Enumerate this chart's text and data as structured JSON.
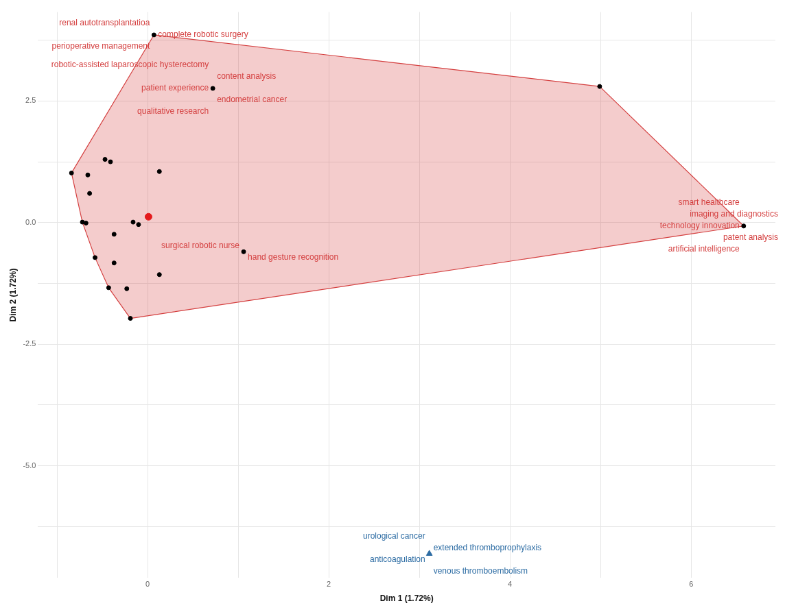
{
  "chart_data": {
    "type": "scatter",
    "xlabel": "Dim 1 (1.72%)",
    "ylabel": "Dim 2 (1.72%)",
    "xlim": [
      -1.21,
      6.93
    ],
    "ylim": [
      -7.31,
      4.33
    ],
    "xticks": [
      {
        "value": -1,
        "label": null
      },
      0,
      {
        "value": 1,
        "label": null
      },
      2,
      {
        "value": 3,
        "label": null
      },
      4,
      {
        "value": 5,
        "label": null
      },
      6
    ],
    "yticks": [
      {
        "value": -6.25,
        "label": null
      },
      {
        "value": -5,
        "label": "-5.0"
      },
      {
        "value": -3.75,
        "label": null
      },
      {
        "value": -2.5,
        "label": "-2.5"
      },
      {
        "value": -1.25,
        "label": null
      },
      {
        "value": 0,
        "label": "0.0"
      },
      {
        "value": 1.25,
        "label": null
      },
      {
        "value": 2.5,
        "label": "2.5"
      },
      {
        "value": 3.75,
        "label": null
      }
    ],
    "grid": true,
    "legend": false,
    "series": [
      {
        "type": "area",
        "color": "#d43f3f",
        "x": [
          0.07,
          4.99,
          6.58,
          -0.19,
          -0.43,
          -0.58,
          -0.72,
          -0.84,
          0.07
        ],
        "values": [
          3.86,
          2.8,
          -0.07,
          -1.97,
          -1.34,
          -0.72,
          0.01,
          1.02,
          3.86
        ],
        "marker": "none"
      },
      {
        "color": "#000000",
        "marker": "circle",
        "x": [
          0.07,
          0.72,
          -0.84,
          -0.47,
          -0.41,
          0.13,
          -0.66,
          -0.64,
          -0.72,
          -0.68,
          -0.16,
          -0.1,
          -0.37,
          1.06,
          -0.58,
          -0.37,
          0.13,
          -0.43,
          -0.23,
          -0.19,
          4.99,
          6.58
        ],
        "values": [
          3.86,
          2.76,
          1.02,
          1.3,
          1.25,
          1.05,
          0.98,
          0.6,
          0.01,
          -0.01,
          0.01,
          -0.04,
          -0.24,
          -0.6,
          -0.72,
          -0.83,
          -1.07,
          -1.34,
          -1.36,
          -1.97,
          2.8,
          -0.07
        ]
      },
      {
        "color": "#e41a1c",
        "marker": "circle",
        "x": [
          0.01
        ],
        "values": [
          0.12
        ]
      },
      {
        "color": "#2e6da4",
        "marker": "triangle",
        "x": [
          3.11
        ],
        "values": [
          -6.81
        ]
      }
    ],
    "annotations": [
      {
        "text": "renal autotransplantatioa",
        "x": 0.07,
        "y": 3.86
      },
      {
        "text": "complete robotic surgery",
        "x": 0.07,
        "y": 3.86
      },
      {
        "text": "perioperative management",
        "x": 0.07,
        "y": 3.86
      },
      {
        "text": "robotic-assisted laparoscopic hysterectomy",
        "x": 0.72,
        "y": 2.76
      },
      {
        "text": "content analysis",
        "x": 0.72,
        "y": 2.76
      },
      {
        "text": "patient experience",
        "x": 0.72,
        "y": 2.76
      },
      {
        "text": "endometrial cancer",
        "x": 0.72,
        "y": 2.76
      },
      {
        "text": "qualitative research",
        "x": 0.72,
        "y": 2.76
      },
      {
        "text": "surgical robotic nurse",
        "x": 1.06,
        "y": -0.6
      },
      {
        "text": "hand gesture recognition",
        "x": 1.06,
        "y": -0.6
      },
      {
        "text": "smart healthcare",
        "x": 6.58,
        "y": -0.07
      },
      {
        "text": "imaging and diagnostics",
        "x": 6.58,
        "y": -0.07
      },
      {
        "text": "technology innovation",
        "x": 6.58,
        "y": -0.07
      },
      {
        "text": "patent analysis",
        "x": 6.58,
        "y": -0.07
      },
      {
        "text": "artificial intelligence",
        "x": 6.58,
        "y": -0.07
      },
      {
        "text": "urological cancer",
        "x": 3.11,
        "y": -6.81
      },
      {
        "text": "extended thromboprophylaxis",
        "x": 3.11,
        "y": -6.81
      },
      {
        "text": "anticoagulation",
        "x": 3.11,
        "y": -6.81
      },
      {
        "text": "venous thromboembolism",
        "x": 3.11,
        "y": -6.81
      }
    ]
  }
}
